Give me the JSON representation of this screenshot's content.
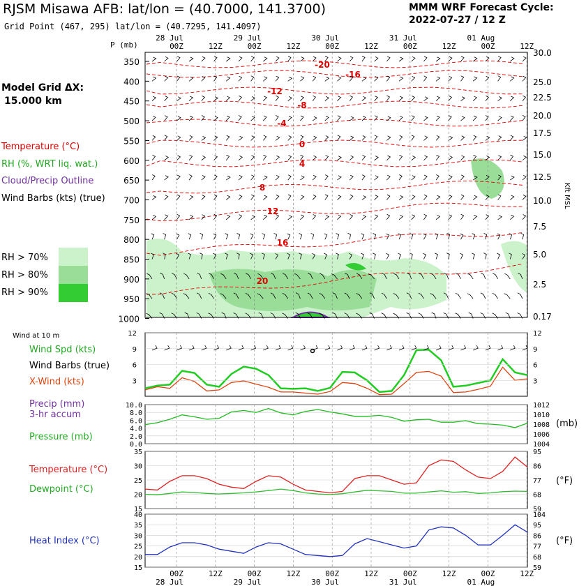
{
  "header": {
    "title": "RJSM Misawa AFB:  lat/lon = (40.7000, 141.3700)",
    "subtitle": "Grid Point (467, 295) lat/lon = (40.7295, 141.4097)",
    "cycle_label": "MMM WRF Forecast Cycle:",
    "cycle_value": "2022-07-27 / 12  Z"
  },
  "model_grid": {
    "line1": "Model Grid ΔX:",
    "line2": "15.000 km"
  },
  "legend": {
    "temperature": "Temperature (°C)",
    "rh": "RH (%, WRT liq. wat.)",
    "cloud": "Cloud/Precip Outline",
    "barbs": "Wind Barbs (kts) (true)",
    "rh70": "RH > 70%",
    "rh80": "RH > 80%",
    "rh90": "RH > 90%",
    "colors": {
      "temperature": "#dd0000",
      "rh": "#22bb22",
      "cloud": "#7030a0",
      "rh70": "#ccf2cc",
      "rh80": "#99dd99",
      "rh90": "#33cc33"
    }
  },
  "panel_labels": {
    "wind10": "Wind at 10 m",
    "wind_spd": "Wind Spd (kts)",
    "wind_barbs": "Wind Barbs (true)",
    "xwind": "X-Wind (kts)",
    "precip": "Precip (mm)",
    "precip2": "3-hr accum",
    "pressure": "Pressure (mb)",
    "temperature": "Temperature (°C)",
    "dewpoint": "Dewpoint (°C)",
    "heat_index": "Heat Index (°C)",
    "unit_mb": "(mb)",
    "unit_f": "(°F)",
    "unit_f2": "(°F)",
    "kft_label": "Kft MSL"
  },
  "chart_data": [
    {
      "type": "contour",
      "name": "cross-section",
      "x_time_labels": [
        "00Z",
        "12Z",
        "00Z",
        "12Z",
        "00Z",
        "12Z",
        "00Z",
        "12Z",
        "00Z",
        "12Z"
      ],
      "x_date_labels": [
        "28 Jul",
        "29 Jul",
        "30 Jul",
        "31 Jul",
        "01 Aug"
      ],
      "y_label": "P (mb)",
      "pressure_ticks": [
        350,
        400,
        450,
        500,
        550,
        600,
        650,
        700,
        750,
        800,
        850,
        900,
        950,
        1000
      ],
      "height_ticks": [
        "30.0",
        "25.0",
        "22.5",
        "20.0",
        "17.5",
        "15.0",
        "12.5",
        "10.0",
        "7.5",
        "5.0",
        "2.5",
        "0.17"
      ],
      "temperature_contour_labels": [
        "-20",
        "-16",
        "-12",
        "-8",
        "-4",
        "0",
        "4",
        "8",
        "12",
        "16",
        "20"
      ]
    },
    {
      "type": "line",
      "name": "wind",
      "yticks": [
        3,
        6,
        9,
        12
      ],
      "ylim": [
        0,
        12
      ],
      "series": [
        {
          "name": "Wind Spd (kts)",
          "color": "#22cc22",
          "values": [
            1.5,
            2,
            2.2,
            4.8,
            4.4,
            2.2,
            1.8,
            4.2,
            5.6,
            5.2,
            4.0,
            1.5,
            1.4,
            1.5,
            1.0,
            1.6,
            4.6,
            4.5,
            3.0,
            0.8,
            1.0,
            4.0,
            8.7,
            8.8,
            6.8,
            1.8,
            2.0,
            2.5,
            3.0,
            7.0,
            4.5,
            4.0
          ]
        },
        {
          "name": "X-Wind (kts)",
          "color": "#dd4411",
          "values": [
            1.2,
            1.8,
            1.5,
            3.5,
            2.8,
            1.0,
            1.2,
            2.6,
            2.9,
            2.3,
            1.7,
            0.8,
            0.8,
            0.6,
            0.4,
            0.9,
            2.6,
            2.4,
            1.5,
            0.3,
            0.4,
            2.4,
            4.5,
            4.7,
            3.8,
            0.7,
            0.8,
            1.3,
            1.9,
            5.5,
            3.0,
            3.3
          ]
        }
      ]
    },
    {
      "type": "line",
      "name": "pressure",
      "left_ticks": [
        "0.0",
        "2.0",
        "4.0",
        "6.0",
        "8.0",
        "10.0"
      ],
      "right_ticks": [
        "1004",
        "1006",
        "1008",
        "1010",
        "1012"
      ],
      "ylim": [
        1004,
        1012
      ],
      "series": [
        {
          "name": "Pressure (mb)",
          "color": "#22bb22",
          "values": [
            1007.9,
            1008.3,
            1009.0,
            1009.9,
            1009.5,
            1009.0,
            1009.2,
            1010.5,
            1010.8,
            1010.4,
            1011.2,
            1010.3,
            1009.9,
            1010.6,
            1011.0,
            1010.5,
            1010.1,
            1009.6,
            1009.6,
            1009.8,
            1009.4,
            1008.6,
            1008.9,
            1009.0,
            1008.4,
            1008.4,
            1008.7,
            1008.1,
            1008.0,
            1007.8,
            1007.3,
            1008.2
          ]
        }
      ]
    },
    {
      "type": "line",
      "name": "temperature",
      "left_ticks": [
        15,
        20,
        25,
        30,
        35
      ],
      "right_ticks": [
        59,
        68,
        77,
        86,
        95
      ],
      "ylim": [
        15,
        35
      ],
      "series": [
        {
          "name": "Temperature (°C)",
          "color": "#dd2222",
          "values": [
            21.8,
            21.5,
            24.5,
            26.5,
            26.5,
            25.5,
            23.5,
            22.5,
            22.0,
            24.5,
            26.5,
            26.0,
            23.5,
            21.5,
            21.0,
            20.5,
            21.0,
            25.5,
            26.5,
            26.5,
            25.0,
            23.5,
            24.0,
            30.0,
            32.0,
            31.5,
            28.5,
            26.0,
            25.5,
            28.0,
            33.0,
            29.5
          ]
        },
        {
          "name": "Dewpoint (°C)",
          "color": "#33bb33",
          "values": [
            20.0,
            19.8,
            20.3,
            20.8,
            20.6,
            20.3,
            20.1,
            20.3,
            20.5,
            20.8,
            21.3,
            21.8,
            21.3,
            20.5,
            20.1,
            19.9,
            20.2,
            20.8,
            21.4,
            21.2,
            21.0,
            20.4,
            20.4,
            20.8,
            21.2,
            20.7,
            20.9,
            20.3,
            20.5,
            20.9,
            21.1,
            21.0
          ]
        }
      ]
    },
    {
      "type": "line",
      "name": "heat-index",
      "left_ticks": [
        15,
        20,
        25,
        30,
        35,
        40
      ],
      "right_ticks": [
        59,
        68,
        77,
        86,
        95,
        104
      ],
      "ylim": [
        15,
        40
      ],
      "series": [
        {
          "name": "Heat Index (°C)",
          "color": "#2233bb",
          "values": [
            21.0,
            21.0,
            24.5,
            26.5,
            26.5,
            25.5,
            23.5,
            22.5,
            21.5,
            24.5,
            26.5,
            26.0,
            23.5,
            21.0,
            20.5,
            20.0,
            20.5,
            26.0,
            28.5,
            27.0,
            25.5,
            24.0,
            25.0,
            32.5,
            34.0,
            33.5,
            30.0,
            25.5,
            25.5,
            30.0,
            35.0,
            31.5
          ]
        }
      ]
    }
  ]
}
